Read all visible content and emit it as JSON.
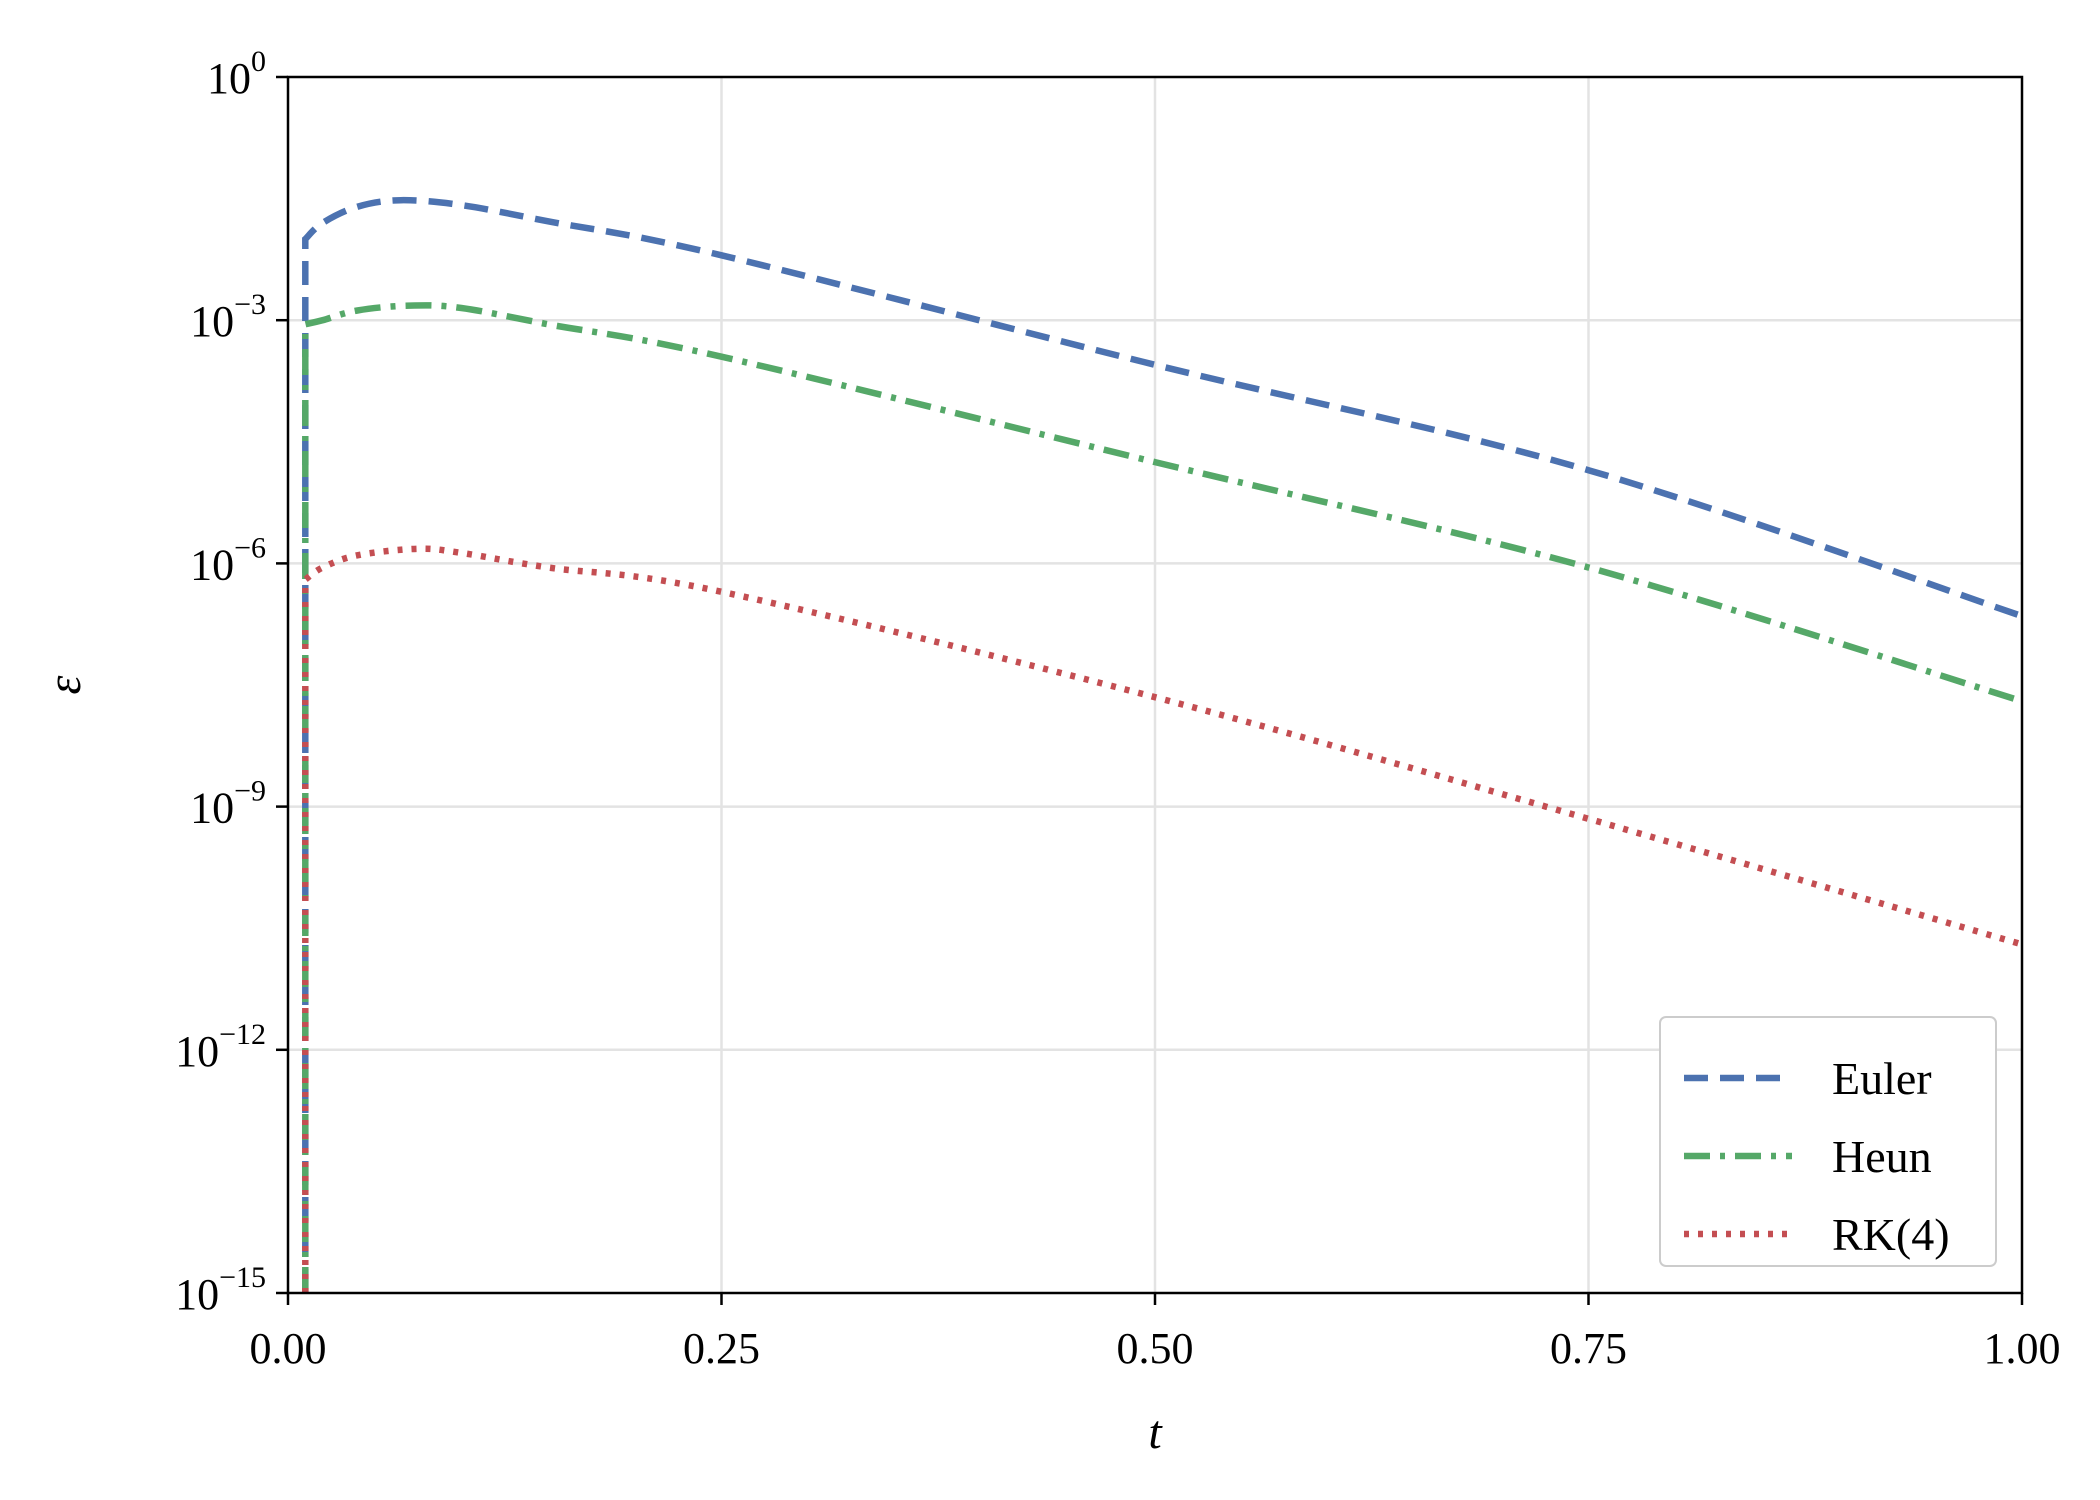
{
  "chart_data": {
    "type": "line",
    "xlabel": "t",
    "ylabel": "ε",
    "xlim": [
      0,
      1
    ],
    "ylim_exponent": [
      -15,
      0
    ],
    "yscale": "log",
    "grid": true,
    "legend_position": "lower-right",
    "x_ticks": [
      "0.00",
      "0.25",
      "0.50",
      "0.75",
      "1.00"
    ],
    "x_tick_values": [
      0,
      0.25,
      0.5,
      0.75,
      1.0
    ],
    "y_ticks": [
      {
        "base": "10",
        "exp": "0",
        "value": 0
      },
      {
        "base": "10",
        "exp": "−3",
        "value": -3
      },
      {
        "base": "10",
        "exp": "−6",
        "value": -6
      },
      {
        "base": "10",
        "exp": "−9",
        "value": -9
      },
      {
        "base": "10",
        "exp": "−12",
        "value": -12
      },
      {
        "base": "10",
        "exp": "−15",
        "value": -15
      }
    ],
    "series": [
      {
        "name": "Euler",
        "color": "#4c72b0",
        "dash": "dashed",
        "x": [
          0.01,
          0.01,
          0.02,
          0.04,
          0.065,
          0.1,
          0.15,
          0.25,
          0.5,
          0.75,
          1.0
        ],
        "log10y": [
          -15,
          -2.0,
          -1.8,
          -1.6,
          -1.52,
          -1.58,
          -1.78,
          -2.2,
          -3.55,
          -4.85,
          -6.65
        ]
      },
      {
        "name": "Heun",
        "color": "#55a868",
        "dash": "dashdot",
        "x": [
          0.01,
          0.01,
          0.02,
          0.04,
          0.07,
          0.1,
          0.15,
          0.25,
          0.5,
          0.75,
          1.0
        ],
        "log10y": [
          -15,
          -3.05,
          -3.0,
          -2.88,
          -2.82,
          -2.85,
          -3.05,
          -3.45,
          -4.75,
          -6.05,
          -7.7
        ]
      },
      {
        "name": "RK(4)",
        "color": "#c44e52",
        "dash": "dotted",
        "x": [
          0.01,
          0.01,
          0.02,
          0.04,
          0.075,
          0.1,
          0.15,
          0.25,
          0.5,
          0.75,
          1.0
        ],
        "log10y": [
          -15,
          -6.2,
          -6.05,
          -5.9,
          -5.82,
          -5.87,
          -6.05,
          -6.35,
          -7.65,
          -9.15,
          -10.7
        ]
      }
    ]
  }
}
